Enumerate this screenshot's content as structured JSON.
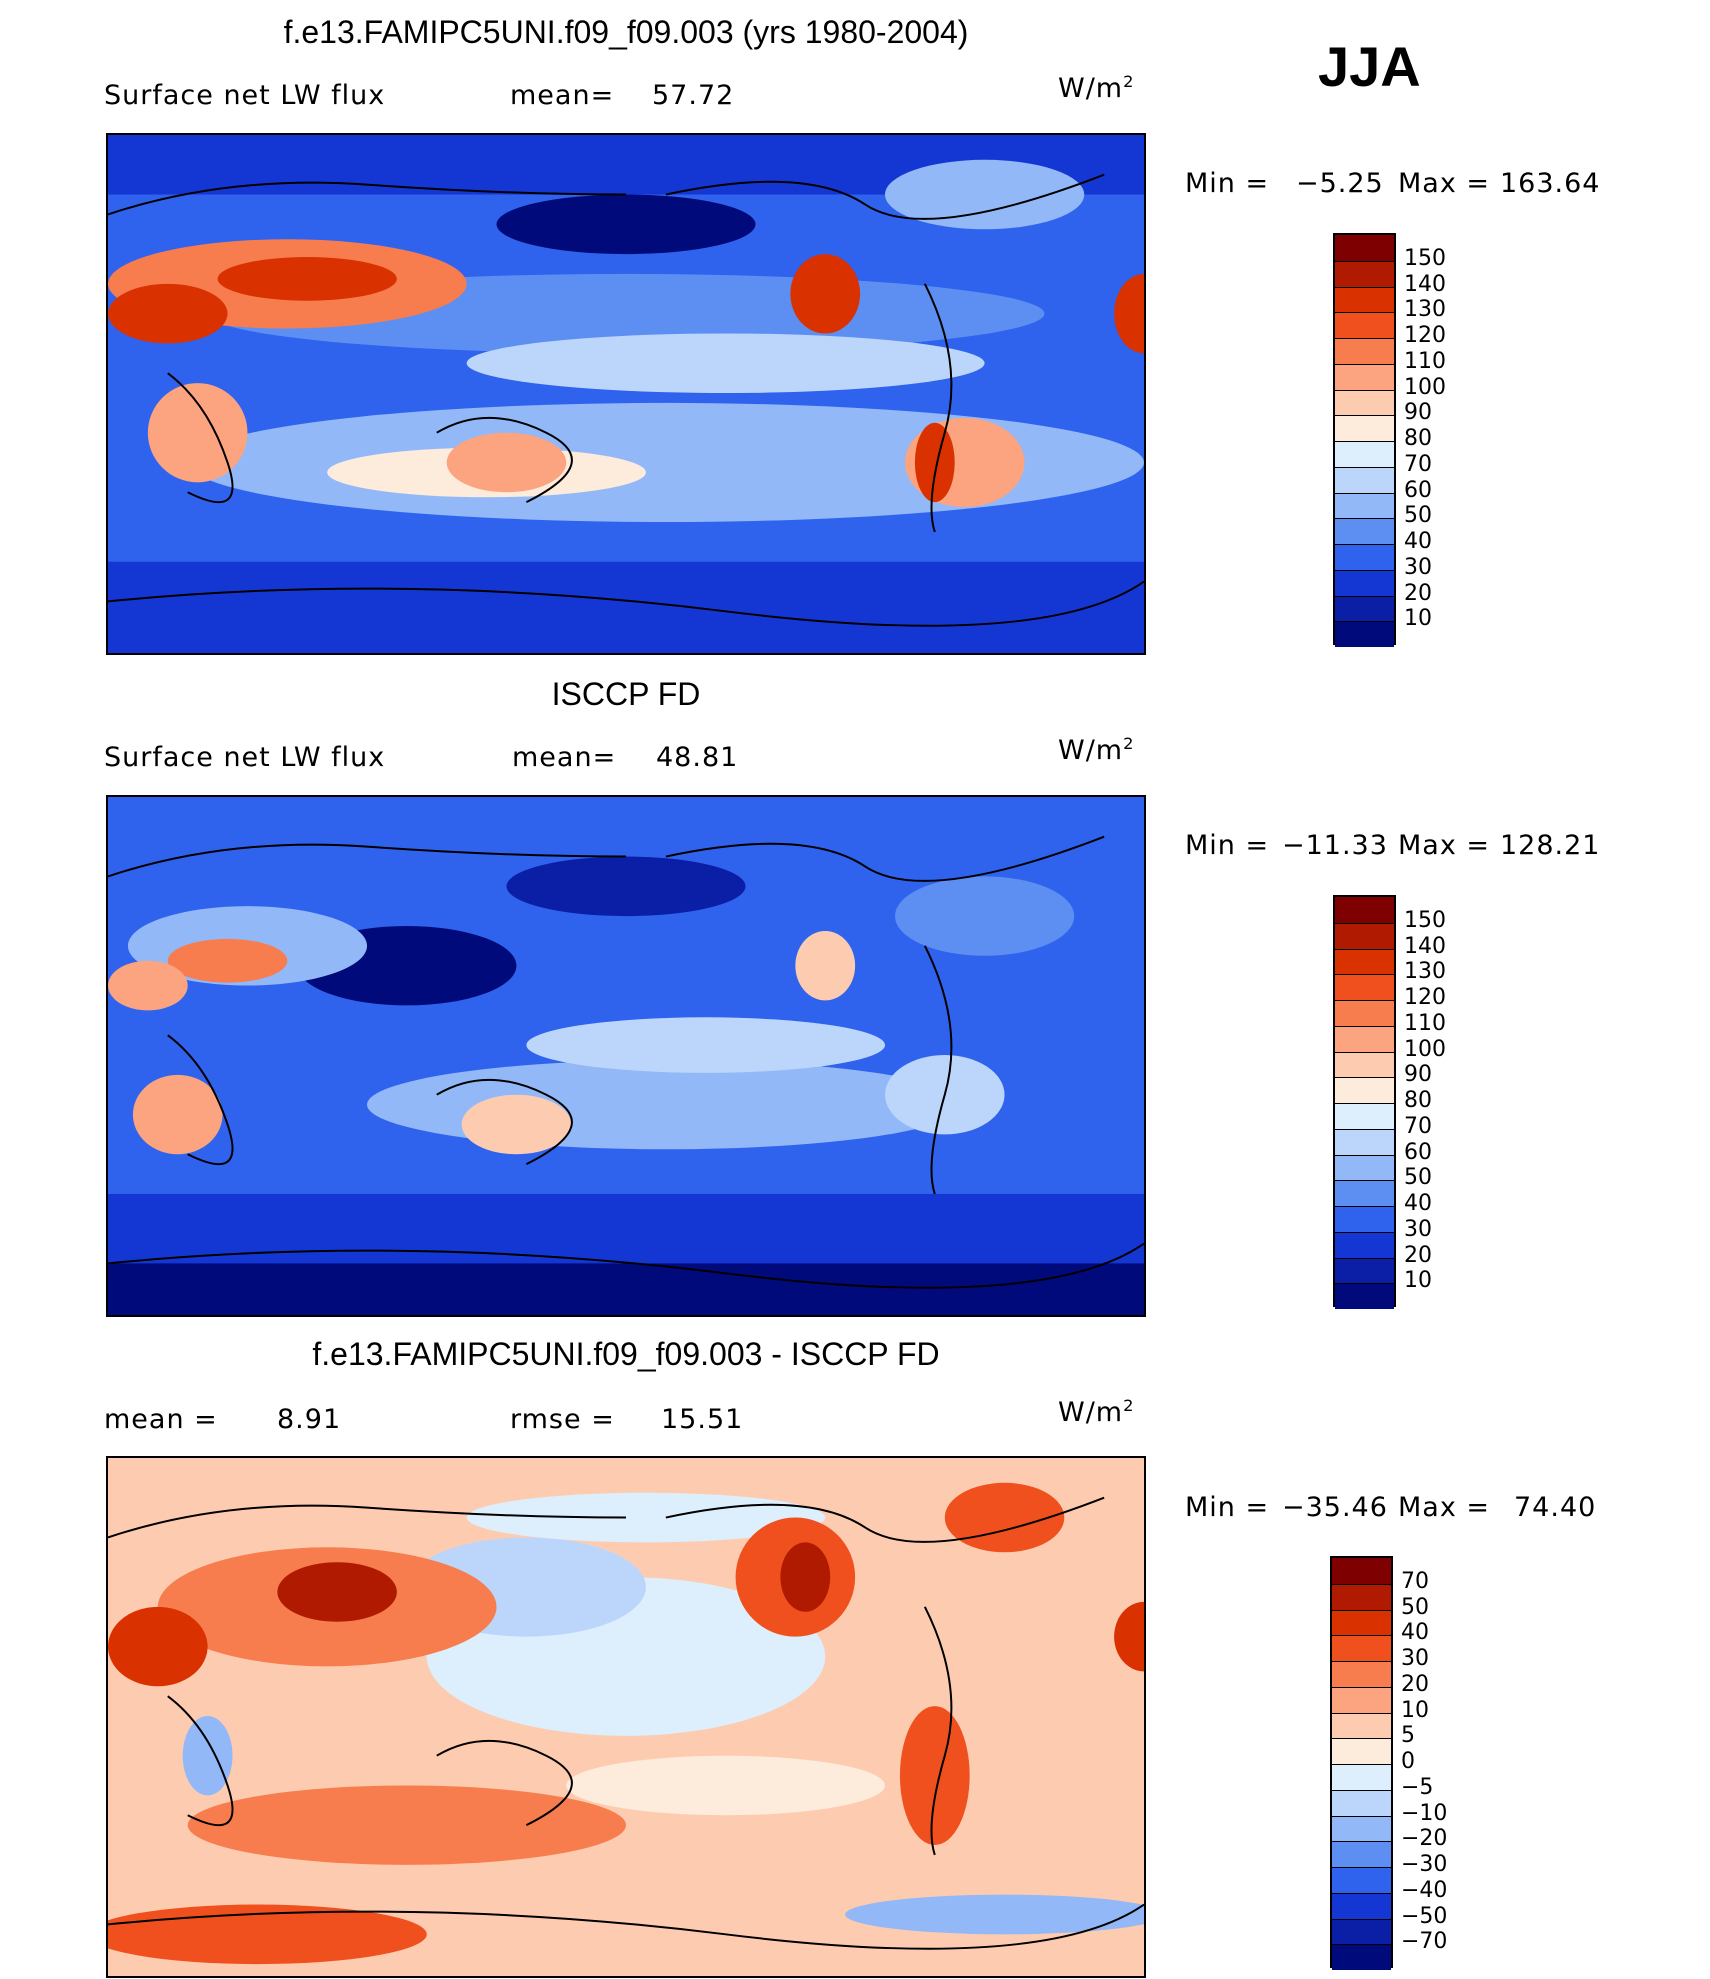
{
  "season": "JJA",
  "units_prefix": "W/m",
  "units_exp": "2",
  "panels": [
    {
      "title": "f.e13.FAMIPC5UNI.f09_f09.003 (yrs 1980-2004)",
      "left_label": "Surface net LW flux",
      "stat_label": "mean=",
      "stat_value": "57.72",
      "min_label": "Min =",
      "min_value": "−5.25",
      "max_label": "Max =",
      "max_value": "163.64",
      "style": "model"
    },
    {
      "title": "ISCCP FD",
      "left_label": "Surface net LW flux",
      "stat_label": "mean=",
      "stat_value": "48.81",
      "min_label": "Min =",
      "min_value": "−11.33",
      "max_label": "Max =",
      "max_value": "128.21",
      "style": "obs"
    },
    {
      "title": "f.e13.FAMIPC5UNI.f09_f09.003 - ISCCP FD",
      "left_label": "mean =",
      "left_value": "8.91",
      "stat_label": "rmse =",
      "stat_value": "15.51",
      "min_label": "Min =",
      "min_value": "−35.46",
      "max_label": "Max =",
      "max_value": "74.40",
      "style": "diff"
    }
  ],
  "colorbar_abs": {
    "labels": [
      "150",
      "140",
      "130",
      "120",
      "110",
      "100",
      "90",
      "80",
      "70",
      "60",
      "50",
      "40",
      "30",
      "20",
      "10"
    ],
    "colors": [
      "#7f0000",
      "#b01a00",
      "#d93200",
      "#f0501e",
      "#f77d4e",
      "#fba47f",
      "#fdccb0",
      "#fdebdc",
      "#ddeefc",
      "#bcd6fb",
      "#92b8f8",
      "#5d8ff2",
      "#2f63ee",
      "#1437d4",
      "#0a1fa6",
      "#000a7a"
    ]
  },
  "colorbar_diff": {
    "labels": [
      "70",
      "50",
      "40",
      "30",
      "20",
      "10",
      "5",
      "0",
      "−5",
      "−10",
      "−20",
      "−30",
      "−40",
      "−50",
      "−70"
    ],
    "colors": [
      "#7f0000",
      "#b01a00",
      "#d93200",
      "#f0501e",
      "#f77d4e",
      "#fba47f",
      "#fdccb0",
      "#fdebdc",
      "#ddeefc",
      "#bcd6fb",
      "#92b8f8",
      "#5d8ff2",
      "#2f63ee",
      "#1437d4",
      "#0a1fa6",
      "#000a7a"
    ]
  }
}
